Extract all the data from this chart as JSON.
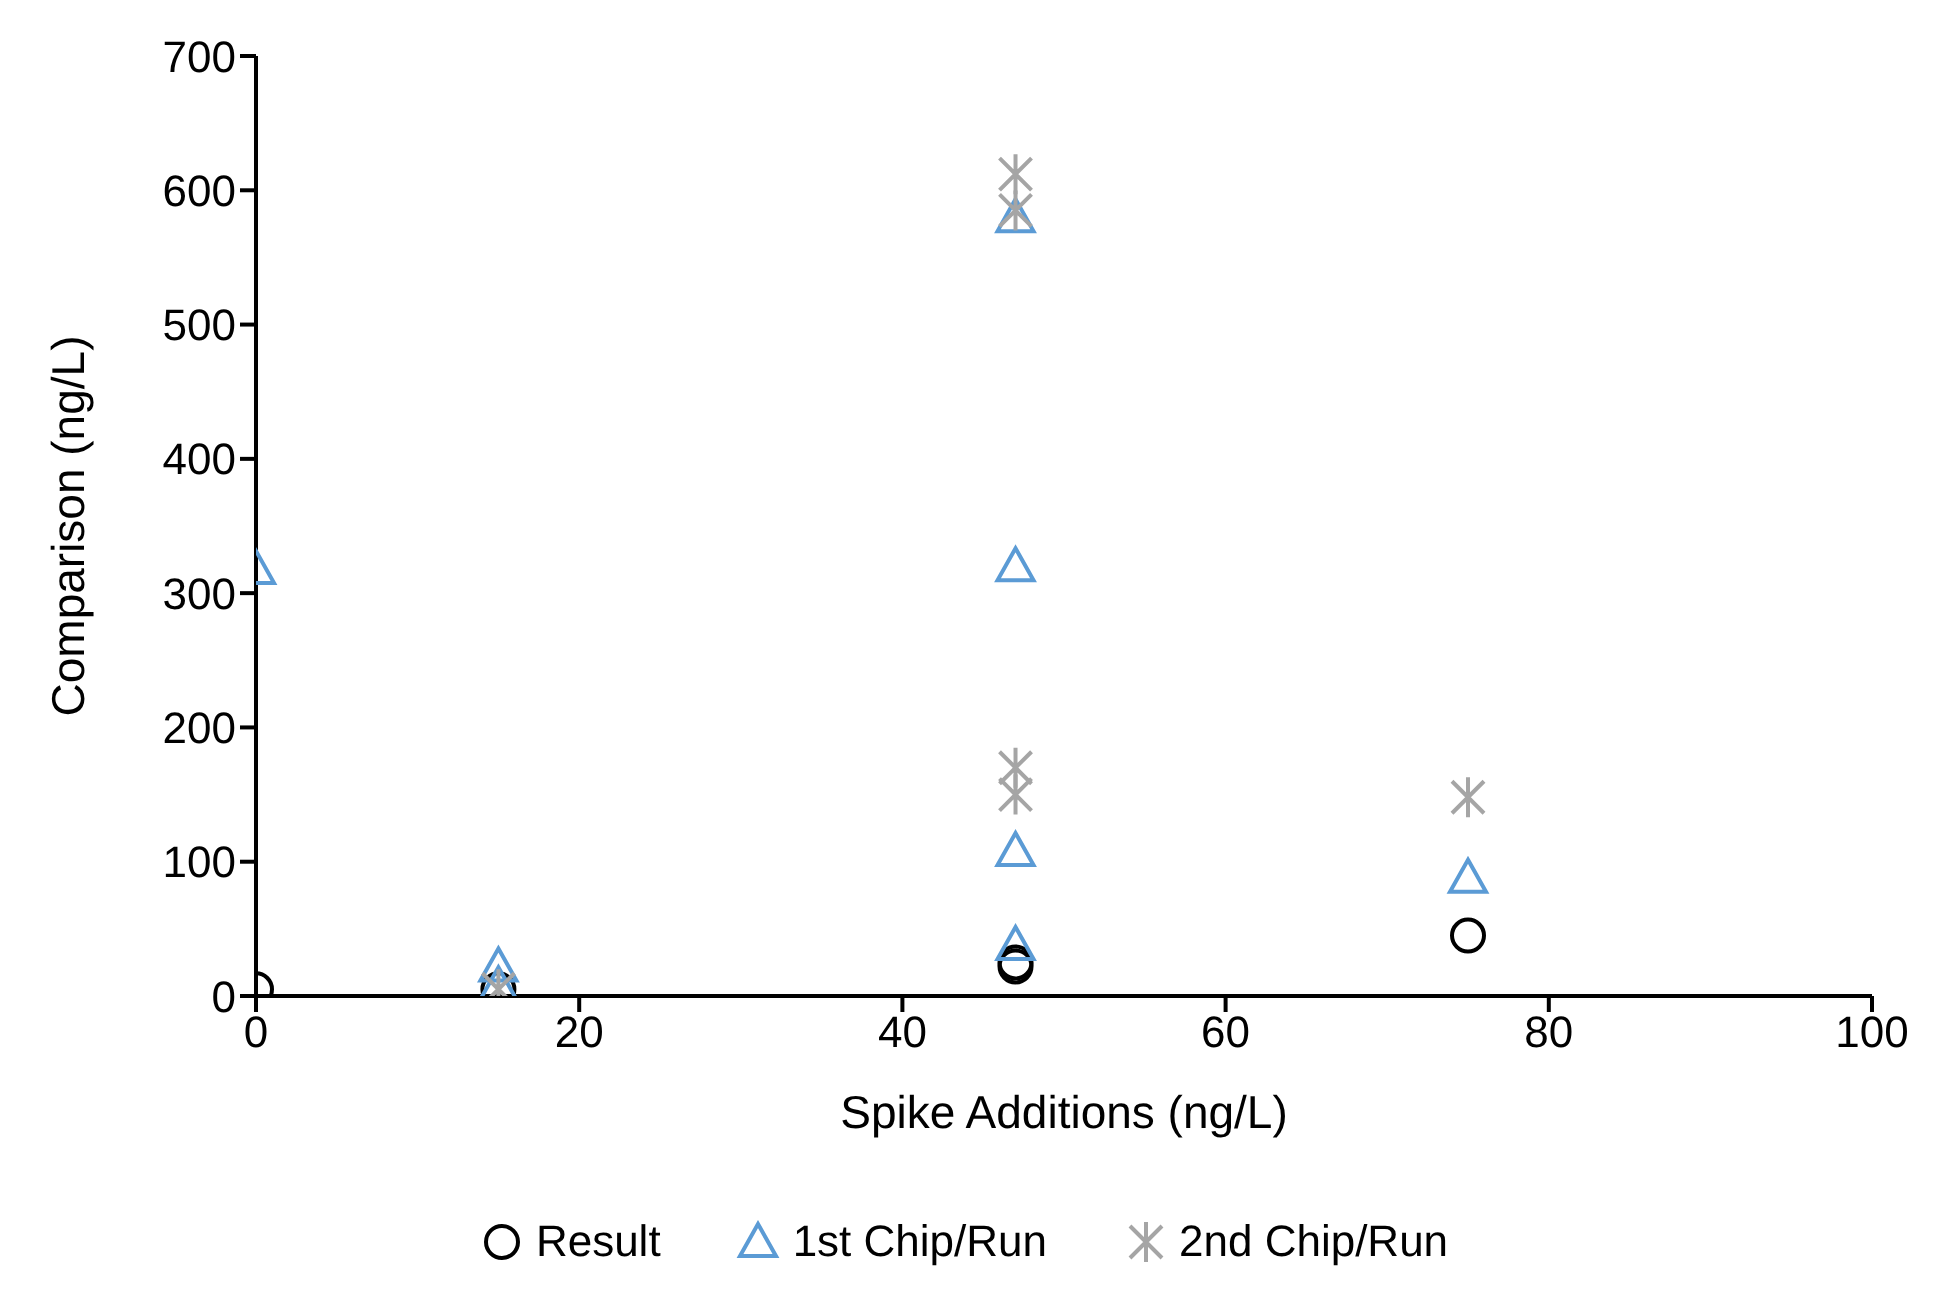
{
  "chart_data": {
    "type": "scatter",
    "xlabel": "Spike Additions (ng/L)",
    "ylabel": "Comparison (ng/L)",
    "xlim": [
      0,
      100
    ],
    "xticks": [
      0,
      20,
      40,
      60,
      80,
      100
    ],
    "ylim": [
      0,
      700
    ],
    "yticks": [
      0,
      100,
      200,
      300,
      400,
      500,
      600,
      700
    ],
    "grid": false,
    "legend": "bottom",
    "series": [
      {
        "name": "Result",
        "color": "#000000",
        "marker": "circle",
        "x": [
          0,
          15,
          47,
          47,
          75
        ],
        "values": [
          5,
          5,
          25,
          22,
          45
        ]
      },
      {
        "name": "1st Chip/Run",
        "color": "#5b9bd5",
        "marker": "triangle",
        "x": [
          0,
          15,
          15,
          47,
          47,
          47,
          47,
          75
        ],
        "values": [
          318,
          22,
          8,
          580,
          320,
          108,
          38,
          88
        ]
      },
      {
        "name": "2nd Chip/Run",
        "color": "#a5a5a5",
        "marker": "cross",
        "x": [
          15,
          47,
          47,
          47,
          47,
          75
        ],
        "values": [
          5,
          612,
          585,
          170,
          150,
          148
        ]
      }
    ]
  }
}
